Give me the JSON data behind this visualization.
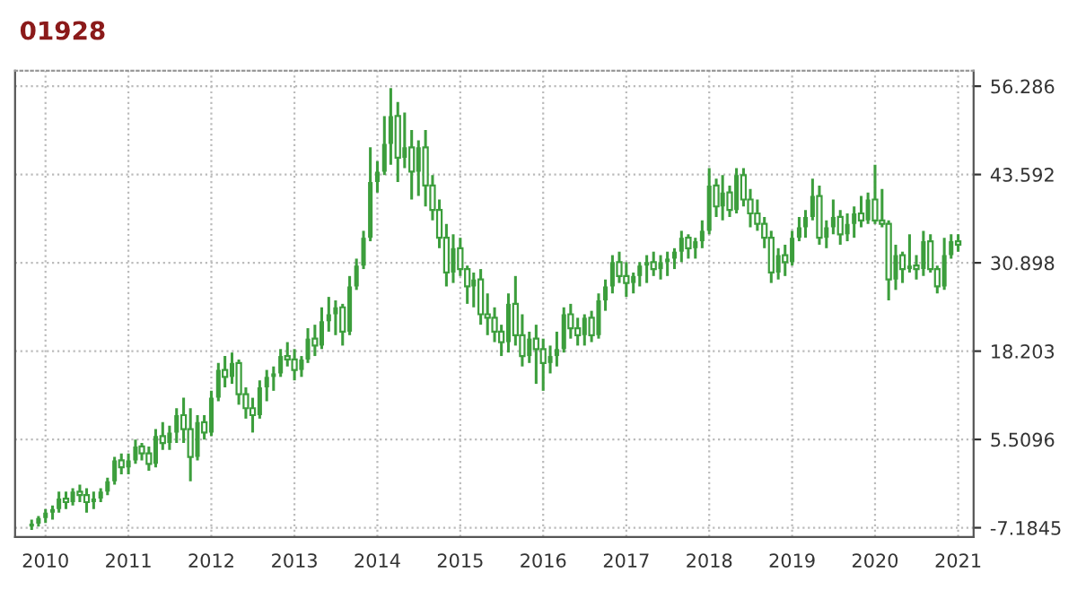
{
  "chart_data": {
    "type": "candlestick",
    "title": "01928",
    "color": "#3c9e3c",
    "x": [
      "2009-11",
      "2009-12",
      "2010-01",
      "2010-02",
      "2010-03",
      "2010-04",
      "2010-05",
      "2010-06",
      "2010-07",
      "2010-08",
      "2010-09",
      "2010-10",
      "2010-11",
      "2010-12",
      "2011-01",
      "2011-02",
      "2011-03",
      "2011-04",
      "2011-05",
      "2011-06",
      "2011-07",
      "2011-08",
      "2011-09",
      "2011-10",
      "2011-11",
      "2011-12",
      "2012-01",
      "2012-02",
      "2012-03",
      "2012-04",
      "2012-05",
      "2012-06",
      "2012-07",
      "2012-08",
      "2012-09",
      "2012-10",
      "2012-11",
      "2012-12",
      "2013-01",
      "2013-02",
      "2013-03",
      "2013-04",
      "2013-05",
      "2013-06",
      "2013-07",
      "2013-08",
      "2013-09",
      "2013-10",
      "2013-11",
      "2013-12",
      "2014-01",
      "2014-02",
      "2014-03",
      "2014-04",
      "2014-05",
      "2014-06",
      "2014-07",
      "2014-08",
      "2014-09",
      "2014-10",
      "2014-11",
      "2014-12",
      "2015-01",
      "2015-02",
      "2015-03",
      "2015-04",
      "2015-05",
      "2015-06",
      "2015-07",
      "2015-08",
      "2015-09",
      "2015-10",
      "2015-11",
      "2015-12",
      "2016-01",
      "2016-02",
      "2016-03",
      "2016-04",
      "2016-05",
      "2016-06",
      "2016-07",
      "2016-08",
      "2016-09",
      "2016-10",
      "2016-11",
      "2016-12",
      "2017-01",
      "2017-02",
      "2017-03",
      "2017-04",
      "2017-05",
      "2017-06",
      "2017-07",
      "2017-08",
      "2017-09",
      "2017-10",
      "2017-11",
      "2017-12",
      "2018-01",
      "2018-02",
      "2018-03",
      "2018-04",
      "2018-05",
      "2018-06",
      "2018-07",
      "2018-08",
      "2018-09",
      "2018-10",
      "2018-11",
      "2018-12",
      "2019-01",
      "2019-02",
      "2019-03",
      "2019-04",
      "2019-05",
      "2019-06",
      "2019-07",
      "2019-08",
      "2019-09",
      "2019-10",
      "2019-11",
      "2019-12",
      "2020-01",
      "2020-02",
      "2020-03",
      "2020-04",
      "2020-05",
      "2020-06",
      "2020-07",
      "2020-08",
      "2020-09",
      "2020-10",
      "2020-11",
      "2020-12",
      "2021-01"
    ],
    "ohlc": [
      [
        -7.0,
        -6.0,
        -7.5,
        -6.6
      ],
      [
        -6.6,
        -5.5,
        -7.0,
        -5.8
      ],
      [
        -5.8,
        -4.5,
        -6.5,
        -5.0
      ],
      [
        -5.0,
        -4.0,
        -6.0,
        -4.5
      ],
      [
        -4.5,
        -2.0,
        -5.0,
        -3.0
      ],
      [
        -3.0,
        -2.0,
        -4.5,
        -3.5
      ],
      [
        -3.5,
        -1.5,
        -4.0,
        -2.0
      ],
      [
        -2.0,
        -1.0,
        -3.5,
        -2.5
      ],
      [
        -2.5,
        -1.5,
        -5.0,
        -3.5
      ],
      [
        -3.5,
        -2.0,
        -4.5,
        -3.0
      ],
      [
        -3.0,
        -1.5,
        -3.5,
        -2.0
      ],
      [
        -2.0,
        0.0,
        -2.5,
        -0.5
      ],
      [
        -0.5,
        3.0,
        -1.0,
        2.5
      ],
      [
        2.5,
        3.5,
        0.5,
        1.5
      ],
      [
        1.5,
        3.5,
        0.5,
        2.5
      ],
      [
        2.5,
        5.5,
        2.0,
        4.5
      ],
      [
        4.5,
        5.0,
        2.5,
        3.5
      ],
      [
        3.5,
        4.5,
        1.0,
        2.0
      ],
      [
        2.0,
        7.0,
        1.5,
        6.0
      ],
      [
        6.0,
        8.0,
        4.0,
        5.0
      ],
      [
        5.0,
        7.5,
        4.0,
        6.5
      ],
      [
        6.5,
        10.0,
        5.0,
        9.0
      ],
      [
        9.0,
        11.5,
        5.0,
        7.0
      ],
      [
        7.0,
        10.0,
        -0.5,
        3.0
      ],
      [
        3.0,
        9.0,
        2.5,
        8.0
      ],
      [
        8.0,
        9.0,
        5.5,
        6.5
      ],
      [
        6.5,
        12.5,
        6.0,
        11.5
      ],
      [
        11.5,
        16.5,
        11.0,
        15.5
      ],
      [
        15.5,
        17.5,
        13.0,
        14.5
      ],
      [
        14.5,
        18.0,
        13.5,
        16.5
      ],
      [
        16.5,
        17.0,
        10.5,
        12.0
      ],
      [
        12.0,
        13.0,
        8.5,
        10.0
      ],
      [
        10.0,
        11.5,
        6.5,
        9.0
      ],
      [
        9.0,
        14.0,
        8.5,
        13.0
      ],
      [
        13.0,
        15.5,
        11.0,
        14.5
      ],
      [
        14.5,
        16.0,
        12.5,
        15.0
      ],
      [
        15.0,
        18.5,
        14.5,
        17.5
      ],
      [
        17.5,
        19.5,
        16.0,
        17.0
      ],
      [
        17.0,
        18.5,
        14.0,
        15.5
      ],
      [
        15.5,
        17.5,
        14.5,
        17.0
      ],
      [
        17.0,
        21.5,
        16.5,
        20.0
      ],
      [
        20.0,
        22.0,
        17.5,
        19.0
      ],
      [
        19.0,
        24.5,
        18.5,
        22.5
      ],
      [
        22.5,
        26.0,
        21.0,
        23.5
      ],
      [
        23.5,
        25.5,
        20.5,
        24.5
      ],
      [
        24.5,
        25.0,
        19.0,
        21.0
      ],
      [
        21.0,
        29.0,
        20.5,
        27.5
      ],
      [
        27.5,
        31.5,
        27.0,
        30.5
      ],
      [
        30.5,
        35.5,
        30.0,
        34.5
      ],
      [
        34.5,
        47.5,
        34.0,
        42.5
      ],
      [
        42.5,
        45.5,
        41.0,
        44.0
      ],
      [
        44.0,
        52.0,
        43.5,
        48.0
      ],
      [
        48.0,
        56.0,
        45.0,
        52.0
      ],
      [
        52.0,
        54.0,
        42.5,
        46.0
      ],
      [
        46.0,
        52.5,
        44.5,
        47.5
      ],
      [
        47.5,
        50.0,
        40.0,
        44.0
      ],
      [
        44.0,
        48.5,
        40.5,
        47.5
      ],
      [
        47.5,
        50.0,
        39.0,
        42.0
      ],
      [
        42.0,
        43.5,
        37.0,
        38.5
      ],
      [
        38.5,
        40.0,
        33.0,
        34.5
      ],
      [
        34.5,
        36.5,
        27.5,
        29.5
      ],
      [
        29.5,
        35.0,
        28.0,
        33.0
      ],
      [
        33.0,
        34.5,
        29.0,
        30.0
      ],
      [
        30.0,
        30.5,
        25.0,
        27.5
      ],
      [
        27.5,
        29.5,
        24.5,
        28.5
      ],
      [
        28.5,
        30.0,
        22.0,
        23.5
      ],
      [
        23.5,
        26.5,
        20.5,
        23.0
      ],
      [
        23.0,
        24.5,
        19.5,
        21.0
      ],
      [
        21.0,
        22.0,
        17.5,
        19.5
      ],
      [
        19.5,
        26.5,
        18.0,
        25.0
      ],
      [
        25.0,
        29.0,
        19.0,
        20.5
      ],
      [
        20.5,
        23.5,
        16.0,
        17.5
      ],
      [
        17.5,
        21.0,
        16.5,
        20.0
      ],
      [
        20.0,
        22.0,
        13.5,
        18.5
      ],
      [
        18.5,
        20.0,
        12.5,
        16.5
      ],
      [
        16.5,
        19.0,
        15.0,
        17.5
      ],
      [
        17.5,
        21.0,
        16.0,
        18.5
      ],
      [
        18.5,
        24.5,
        18.0,
        23.5
      ],
      [
        23.5,
        25.0,
        20.0,
        21.5
      ],
      [
        21.5,
        23.0,
        19.0,
        20.5
      ],
      [
        20.5,
        23.5,
        19.0,
        23.0
      ],
      [
        23.0,
        24.0,
        19.5,
        20.5
      ],
      [
        20.5,
        26.5,
        20.0,
        25.5
      ],
      [
        25.5,
        28.5,
        24.0,
        27.5
      ],
      [
        27.5,
        32.0,
        26.5,
        31.0
      ],
      [
        31.0,
        32.5,
        28.0,
        29.0
      ],
      [
        29.0,
        31.0,
        26.0,
        28.0
      ],
      [
        28.0,
        29.5,
        26.5,
        29.0
      ],
      [
        29.0,
        31.0,
        27.5,
        30.5
      ],
      [
        30.5,
        32.0,
        28.0,
        31.0
      ],
      [
        31.0,
        32.5,
        29.0,
        30.0
      ],
      [
        30.0,
        32.0,
        28.5,
        31.0
      ],
      [
        31.0,
        32.5,
        29.0,
        31.5
      ],
      [
        31.5,
        33.0,
        30.0,
        32.5
      ],
      [
        32.5,
        35.5,
        31.0,
        34.5
      ],
      [
        34.5,
        35.0,
        31.5,
        33.0
      ],
      [
        33.0,
        34.5,
        31.5,
        34.0
      ],
      [
        34.0,
        37.0,
        33.0,
        35.5
      ],
      [
        35.5,
        44.5,
        35.0,
        42.0
      ],
      [
        42.0,
        43.0,
        37.5,
        39.0
      ],
      [
        39.0,
        43.5,
        37.0,
        41.0
      ],
      [
        41.0,
        42.0,
        37.5,
        38.5
      ],
      [
        38.5,
        44.5,
        38.0,
        43.5
      ],
      [
        43.5,
        44.5,
        39.0,
        40.0
      ],
      [
        40.0,
        41.5,
        36.0,
        38.0
      ],
      [
        38.0,
        40.0,
        35.5,
        36.5
      ],
      [
        36.5,
        37.5,
        33.0,
        34.5
      ],
      [
        34.5,
        35.5,
        28.0,
        29.5
      ],
      [
        29.5,
        33.0,
        28.5,
        32.0
      ],
      [
        32.0,
        33.5,
        29.0,
        31.0
      ],
      [
        31.0,
        35.5,
        30.5,
        34.5
      ],
      [
        34.5,
        37.5,
        34.0,
        36.0
      ],
      [
        36.0,
        38.5,
        34.5,
        37.5
      ],
      [
        37.5,
        43.0,
        37.0,
        40.5
      ],
      [
        40.5,
        42.0,
        33.5,
        34.5
      ],
      [
        34.5,
        37.0,
        33.0,
        36.0
      ],
      [
        36.0,
        40.0,
        35.0,
        37.5
      ],
      [
        37.5,
        38.5,
        33.5,
        35.0
      ],
      [
        35.0,
        38.0,
        34.0,
        36.5
      ],
      [
        36.5,
        39.0,
        34.5,
        38.0
      ],
      [
        38.0,
        40.5,
        36.0,
        37.0
      ],
      [
        37.0,
        41.0,
        36.5,
        40.0
      ],
      [
        40.0,
        45.0,
        36.5,
        37.0
      ],
      [
        37.0,
        41.5,
        36.0,
        36.5
      ],
      [
        36.5,
        37.0,
        25.5,
        28.5
      ],
      [
        28.5,
        33.5,
        27.0,
        32.0
      ],
      [
        32.0,
        32.5,
        28.0,
        30.0
      ],
      [
        30.0,
        35.0,
        29.5,
        30.5
      ],
      [
        30.5,
        32.0,
        28.5,
        30.0
      ],
      [
        30.0,
        35.5,
        29.0,
        34.0
      ],
      [
        34.0,
        35.0,
        29.5,
        30.0
      ],
      [
        30.0,
        30.5,
        26.5,
        27.5
      ],
      [
        27.5,
        34.5,
        27.0,
        32.0
      ],
      [
        32.0,
        35.0,
        31.5,
        34.0
      ],
      [
        34.0,
        35.0,
        32.5,
        33.5
      ]
    ],
    "xlim": [
      "2009-08-20",
      "2021-03-10"
    ],
    "xticks": [
      {
        "value": "2010-01-01",
        "label": "2010"
      },
      {
        "value": "2011-01-01",
        "label": "2011"
      },
      {
        "value": "2012-01-01",
        "label": "2012"
      },
      {
        "value": "2013-01-01",
        "label": "2013"
      },
      {
        "value": "2014-01-01",
        "label": "2014"
      },
      {
        "value": "2015-01-01",
        "label": "2015"
      },
      {
        "value": "2016-01-01",
        "label": "2016"
      },
      {
        "value": "2017-01-01",
        "label": "2017"
      },
      {
        "value": "2018-01-01",
        "label": "2018"
      },
      {
        "value": "2019-01-01",
        "label": "2019"
      },
      {
        "value": "2020-01-01",
        "label": "2020"
      },
      {
        "value": "2021-01-01",
        "label": "2021"
      }
    ],
    "ylim": [
      -8.5,
      58.5
    ],
    "yticks": [
      -7.1845,
      5.5096,
      18.203,
      30.898,
      43.592,
      56.286
    ],
    "grid": true
  }
}
